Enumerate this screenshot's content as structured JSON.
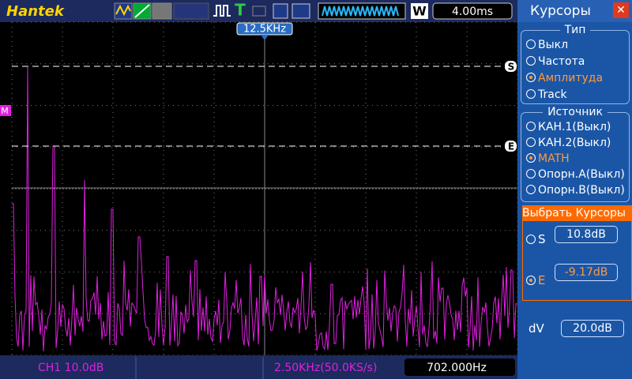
{
  "header": {
    "brand": "Hantek",
    "trigger_freq": "12.5KHz",
    "mode": "W",
    "timebase": "4.00ms"
  },
  "markers": {
    "s": "S",
    "e": "E",
    "m": "M"
  },
  "menu": {
    "title": "Курсоры",
    "type_section": {
      "title": "Тип",
      "options": [
        "Выкл",
        "Частота",
        "Амплитуда",
        "Track"
      ],
      "selected": 2
    },
    "source_section": {
      "title": "Источник",
      "options": [
        "КАН.1(Выкл)",
        "КАН.2(Выкл)",
        "MATH",
        "Опорн.А(Выкл)",
        "Опорн.B(Выкл)"
      ],
      "selected": 2
    },
    "select_cursors": "Выбрать  Курсоры",
    "cursor_s": {
      "label": "S",
      "value": "10.8dB"
    },
    "cursor_e": {
      "label": "E",
      "value": "-9.17dB"
    },
    "delta": {
      "label": "dV",
      "value": "20.0dB"
    }
  },
  "status": {
    "channel": "CH1   10.0dB",
    "sample": "2.50KHz(50.0KS/s)",
    "frequency": "702.000Hz"
  }
}
